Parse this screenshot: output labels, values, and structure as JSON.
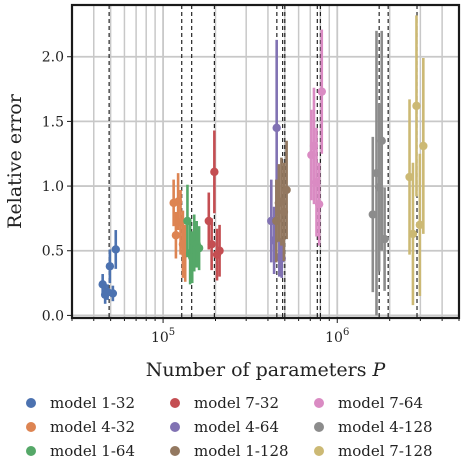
{
  "chart_data": {
    "type": "scatter",
    "title": "",
    "xlabel": "Number of parameters",
    "xlabel_symbol": "P",
    "ylabel": "Relative error",
    "xscale": "log",
    "xlim": [
      30000,
      5000000
    ],
    "ylim": [
      -0.02,
      2.4
    ],
    "yticks": [
      0.0,
      0.5,
      1.0,
      1.5,
      2.0
    ],
    "ytick_labels": [
      "0.0",
      "0.5",
      "1.0",
      "1.5",
      "2.0"
    ],
    "xtick_labels": [
      {
        "base": "10",
        "exp": "5",
        "value": 100000
      },
      {
        "base": "10",
        "exp": "6",
        "value": 1000000
      }
    ],
    "grid": true,
    "legend_placement": "below",
    "vertical_reference_lines_x": [
      49000,
      128000,
      146000,
      197000,
      450000,
      486000,
      500000,
      768000,
      800000,
      1740000,
      1960000,
      2870000
    ],
    "series": [
      {
        "name": "model 1-32",
        "color": "#4c72b0",
        "points": [
          {
            "x": 45000,
            "y": 0.24,
            "err": 0.08
          },
          {
            "x": 46500,
            "y": 0.16,
            "err": 0.07
          },
          {
            "x": 48000,
            "y": 0.18,
            "err": 0.06
          },
          {
            "x": 49500,
            "y": 0.38,
            "err": 0.13
          },
          {
            "x": 51500,
            "y": 0.17,
            "err": 0.06
          },
          {
            "x": 53500,
            "y": 0.51,
            "err": 0.15
          }
        ]
      },
      {
        "name": "model 4-32",
        "color": "#dd8452",
        "points": [
          {
            "x": 115000,
            "y": 0.87,
            "err": 0.18
          },
          {
            "x": 118500,
            "y": 0.62,
            "err": 0.18
          },
          {
            "x": 122000,
            "y": 0.88,
            "err": 0.22
          },
          {
            "x": 126000,
            "y": 0.72,
            "err": 0.25
          },
          {
            "x": 130000,
            "y": 0.55,
            "err": 0.26
          },
          {
            "x": 134000,
            "y": 0.48,
            "err": 0.22
          }
        ]
      },
      {
        "name": "model 1-64",
        "color": "#55a868",
        "points": [
          {
            "x": 138000,
            "y": 0.73,
            "err": 0.28
          },
          {
            "x": 143000,
            "y": 0.48,
            "err": 0.24
          },
          {
            "x": 147000,
            "y": 0.45,
            "err": 0.2
          },
          {
            "x": 151000,
            "y": 0.56,
            "err": 0.22
          },
          {
            "x": 156000,
            "y": 0.55,
            "err": 0.18
          },
          {
            "x": 161000,
            "y": 0.52,
            "err": 0.17
          }
        ]
      },
      {
        "name": "model 7-32",
        "color": "#c44e52",
        "points": [
          {
            "x": 183000,
            "y": 0.73,
            "err": 0.22
          },
          {
            "x": 190000,
            "y": 0.55,
            "err": 0.2
          },
          {
            "x": 197000,
            "y": 1.11,
            "err": 0.32
          },
          {
            "x": 204000,
            "y": 0.47,
            "err": 0.2
          },
          {
            "x": 211000,
            "y": 0.5,
            "err": 0.2
          }
        ]
      },
      {
        "name": "model 4-64",
        "color": "#8172b3",
        "points": [
          {
            "x": 418000,
            "y": 0.73,
            "err": 0.32
          },
          {
            "x": 434000,
            "y": 0.58,
            "err": 0.26
          },
          {
            "x": 449000,
            "y": 1.45,
            "err": 0.68
          },
          {
            "x": 465000,
            "y": 0.45,
            "err": 0.15
          },
          {
            "x": 480000,
            "y": 0.44,
            "err": 0.15
          }
        ]
      },
      {
        "name": "model 1-128",
        "color": "#937860",
        "points": [
          {
            "x": 447000,
            "y": 0.73,
            "err": 0.32
          },
          {
            "x": 462000,
            "y": 0.87,
            "err": 0.3
          },
          {
            "x": 478000,
            "y": 0.88,
            "err": 0.34
          },
          {
            "x": 494000,
            "y": 0.8,
            "err": 0.38
          },
          {
            "x": 512000,
            "y": 0.97,
            "err": 0.38
          }
        ]
      },
      {
        "name": "model 7-64",
        "color": "#da8bc3",
        "points": [
          {
            "x": 710000,
            "y": 1.24,
            "err": 0.35
          },
          {
            "x": 735000,
            "y": 1.31,
            "err": 0.45
          },
          {
            "x": 760000,
            "y": 1.03,
            "err": 0.42
          },
          {
            "x": 787000,
            "y": 0.86,
            "err": 0.32
          },
          {
            "x": 815000,
            "y": 1.73,
            "err": 0.48
          }
        ]
      },
      {
        "name": "model 4-128",
        "color": "#8c8c8c",
        "points": [
          {
            "x": 1600000,
            "y": 0.78,
            "err": 0.6
          },
          {
            "x": 1680000,
            "y": 1.1,
            "err": 1.1
          },
          {
            "x": 1740000,
            "y": 0.99,
            "err": 0.65
          },
          {
            "x": 1800000,
            "y": 1.35,
            "err": 0.85
          },
          {
            "x": 1870000,
            "y": 0.59,
            "err": 0.4
          }
        ]
      },
      {
        "name": "model 7-128",
        "color": "#ccb974",
        "points": [
          {
            "x": 2600000,
            "y": 1.07,
            "err": 0.6
          },
          {
            "x": 2720000,
            "y": 0.63,
            "err": 0.55
          },
          {
            "x": 2850000,
            "y": 1.62,
            "err": 0.7
          },
          {
            "x": 2980000,
            "y": 0.7,
            "err": 0.55
          },
          {
            "x": 3120000,
            "y": 1.31,
            "err": 0.68
          }
        ]
      }
    ]
  }
}
